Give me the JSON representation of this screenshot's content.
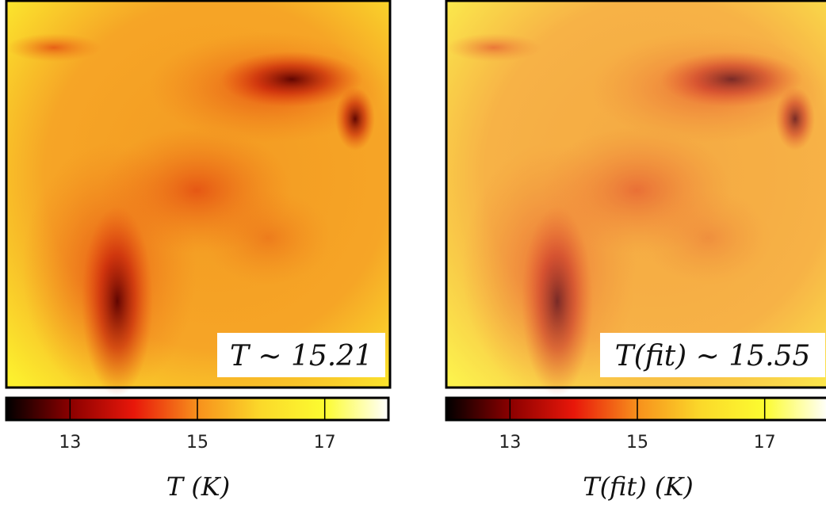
{
  "chart_data": [
    {
      "type": "heatmap",
      "annotation": "T ~ 15.21",
      "xlabel": "T  (K)",
      "clim": [
        12,
        18
      ],
      "cticks": [
        13,
        15,
        17
      ],
      "colormap": [
        "#000000",
        "#8b0000",
        "#e8170a",
        "#f7901c",
        "#fbd92a",
        "#fcfc30",
        "#ffffff"
      ]
    },
    {
      "type": "heatmap",
      "annotation": "T(fit) ~ 15.55",
      "xlabel": "T(fit)  (K)",
      "clim": [
        12,
        18
      ],
      "cticks": [
        13,
        15,
        17
      ],
      "colormap": [
        "#000000",
        "#8b0000",
        "#e8170a",
        "#f7901c",
        "#fbd92a",
        "#fcfc30",
        "#ffffff"
      ]
    }
  ]
}
